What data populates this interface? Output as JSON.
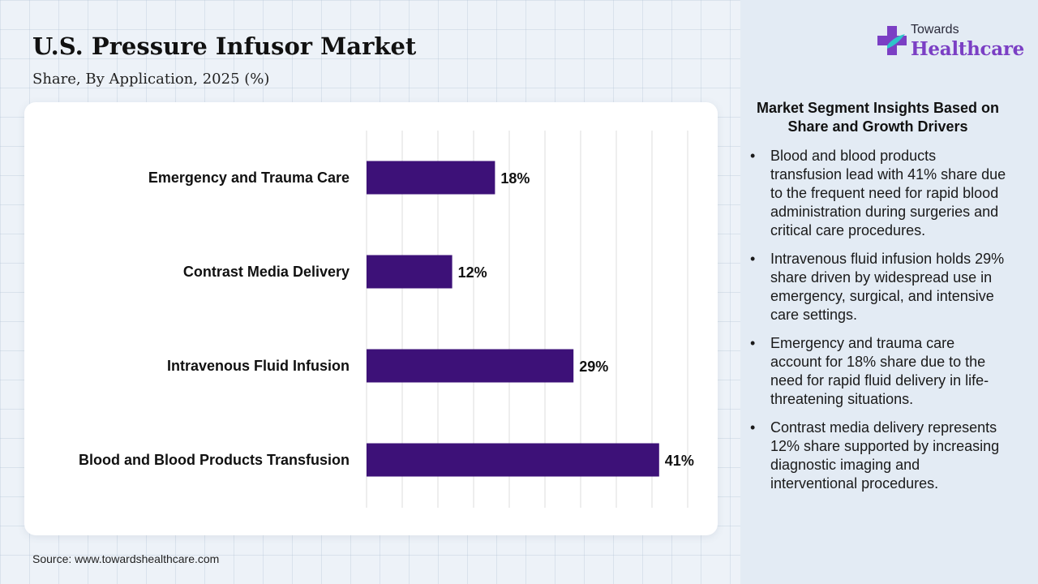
{
  "page": {
    "title": "U.S. Pressure Infusor Market",
    "subtitle": "Share, By Application, 2025 (%)",
    "source": "Source: www.towardshealthcare.com"
  },
  "logo": {
    "line1": "Towards",
    "line2": "Healthcare"
  },
  "insights": {
    "title": "Market Segment Insights Based on Share and Growth Drivers",
    "items": [
      "Blood and blood products transfusion lead with 41% share due to the frequent need for rapid blood administration during surgeries and critical care procedures.",
      "Intravenous fluid infusion holds 29% share driven by widespread use in emergency, surgical, and intensive care settings.",
      "Emergency and trauma care account for 18% share due to the need for rapid fluid delivery in life-threatening situations.",
      "Contrast media delivery represents 12% share supported by increasing diagnostic imaging and interventional procedures."
    ]
  },
  "colors": {
    "bar": "#3d1178",
    "logo_purple": "#7b3fc4",
    "logo_accent": "#2ec4c9"
  },
  "chart_data": {
    "type": "bar",
    "orientation": "horizontal",
    "categories": [
      "Emergency and Trauma Care",
      "Contrast Media Delivery",
      "Intravenous Fluid Infusion",
      "Blood and Blood Products Transfusion"
    ],
    "values": [
      18,
      12,
      29,
      41
    ],
    "data_labels": [
      "18%",
      "12%",
      "29%",
      "41%"
    ],
    "xlim": [
      0,
      45
    ],
    "grid": true,
    "legend": "none"
  }
}
